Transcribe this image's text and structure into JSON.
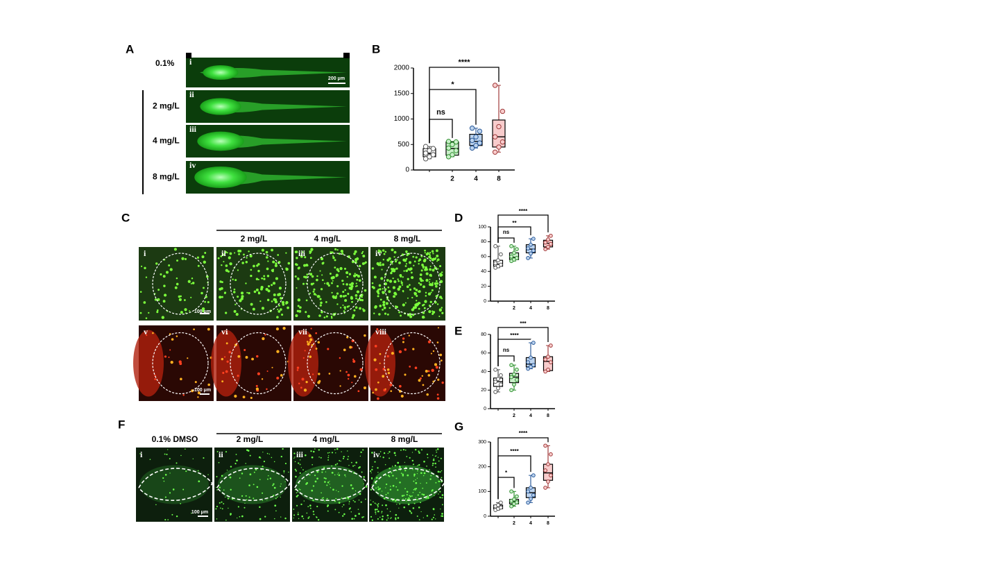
{
  "panels": {
    "A": {
      "label": "A",
      "rows": [
        "0.1%",
        "2 mg/L",
        "4 mg/L",
        "8 mg/L"
      ],
      "numerals": [
        "i",
        "ii",
        "iii",
        "iv"
      ],
      "scale": "200 μm"
    },
    "B": {
      "label": "B"
    },
    "C": {
      "label": "C",
      "headers": [
        "2 mg/L",
        "4 mg/L",
        "8 mg/L"
      ],
      "numerals": [
        "i",
        "ii",
        "iii",
        "iv",
        "v",
        "vi",
        "vii",
        "viii"
      ],
      "scale": "100 μm"
    },
    "D": {
      "label": "D"
    },
    "E": {
      "label": "E"
    },
    "F": {
      "label": "F",
      "headers": [
        "0.1% DMSO",
        "2 mg/L",
        "4 mg/L",
        "8 mg/L"
      ],
      "numerals": [
        "i",
        "ii",
        "iii",
        "iv"
      ],
      "scale": "100 μm"
    },
    "G": {
      "label": "G"
    }
  },
  "chart_data": [
    {
      "type": "box",
      "ylim": [
        0,
        2000
      ],
      "yticks": [
        0,
        500,
        1000,
        1500,
        2000
      ],
      "categories": [
        null,
        "2",
        "4",
        "8"
      ],
      "annotations": [
        "ns",
        "*",
        "****"
      ],
      "boxes": [
        {
          "fill": "#ffffff",
          "stroke": "#555555",
          "min": 220,
          "q1": 260,
          "median": 320,
          "q3": 420,
          "max": 460,
          "points": [
            220,
            260,
            300,
            330,
            380,
            420,
            460
          ]
        },
        {
          "fill": "#c9efc9",
          "stroke": "#2f8f2f",
          "min": 260,
          "q1": 290,
          "median": 420,
          "q3": 550,
          "max": 560,
          "points": [
            260,
            300,
            380,
            430,
            500,
            550,
            560
          ]
        },
        {
          "fill": "#bcd3ee",
          "stroke": "#2a5a9a",
          "min": 430,
          "q1": 480,
          "median": 560,
          "q3": 700,
          "max": 820,
          "points": [
            430,
            480,
            530,
            580,
            650,
            760,
            820
          ]
        },
        {
          "fill": "#f8cccc",
          "stroke": "#a03a3a",
          "min": 350,
          "q1": 450,
          "median": 650,
          "q3": 980,
          "max": 1660,
          "points": [
            350,
            450,
            550,
            650,
            850,
            1150,
            1660
          ]
        }
      ]
    },
    {
      "type": "box",
      "ylim": [
        0,
        100
      ],
      "yticks": [
        0,
        20,
        40,
        60,
        80,
        100
      ],
      "categories": [
        null,
        "2",
        "4",
        "8"
      ],
      "annotations": [
        "ns",
        "**",
        "****"
      ],
      "boxes": [
        {
          "fill": "#ffffff",
          "stroke": "#555555",
          "min": 45,
          "q1": 47,
          "median": 50,
          "q3": 55,
          "max": 74,
          "points": [
            45,
            47,
            49,
            51,
            55,
            63,
            74
          ]
        },
        {
          "fill": "#c9efc9",
          "stroke": "#2f8f2f",
          "min": 54,
          "q1": 56,
          "median": 59,
          "q3": 65,
          "max": 74,
          "points": [
            54,
            56,
            58,
            60,
            65,
            70,
            74
          ]
        },
        {
          "fill": "#bcd3ee",
          "stroke": "#2a5a9a",
          "min": 58,
          "q1": 65,
          "median": 70,
          "q3": 76,
          "max": 84,
          "points": [
            58,
            64,
            68,
            71,
            76,
            84
          ]
        },
        {
          "fill": "#f8cccc",
          "stroke": "#a03a3a",
          "min": 70,
          "q1": 73,
          "median": 78,
          "q3": 82,
          "max": 88,
          "points": [
            70,
            73,
            77,
            79,
            83,
            88
          ]
        }
      ]
    },
    {
      "type": "box",
      "ylim": [
        0,
        80
      ],
      "yticks": [
        0,
        20,
        40,
        60,
        80
      ],
      "categories": [
        null,
        "2",
        "4",
        "8"
      ],
      "annotations": [
        "ns",
        "****",
        "***"
      ],
      "boxes": [
        {
          "fill": "#ffffff",
          "stroke": "#555555",
          "min": 18,
          "q1": 24,
          "median": 29,
          "q3": 33,
          "max": 42,
          "points": [
            18,
            22,
            26,
            29,
            32,
            36,
            42
          ]
        },
        {
          "fill": "#c9efc9",
          "stroke": "#2f8f2f",
          "min": 20,
          "q1": 28,
          "median": 34,
          "q3": 38,
          "max": 47,
          "points": [
            20,
            26,
            31,
            34,
            37,
            42,
            47
          ]
        },
        {
          "fill": "#bcd3ee",
          "stroke": "#2a5a9a",
          "min": 43,
          "q1": 45,
          "median": 48,
          "q3": 55,
          "max": 71,
          "points": [
            43,
            45,
            47,
            50,
            55,
            71
          ]
        },
        {
          "fill": "#f8cccc",
          "stroke": "#a03a3a",
          "min": 40,
          "q1": 41,
          "median": 51,
          "q3": 56,
          "max": 68,
          "points": [
            40,
            42,
            50,
            53,
            56,
            68
          ]
        }
      ]
    },
    {
      "type": "box",
      "ylim": [
        0,
        300
      ],
      "yticks": [
        0,
        100,
        200,
        300
      ],
      "categories": [
        null,
        "2",
        "4",
        "8"
      ],
      "annotations": [
        "*",
        "****",
        "****"
      ],
      "boxes": [
        {
          "fill": "#ffffff",
          "stroke": "#555555",
          "min": 25,
          "q1": 30,
          "median": 38,
          "q3": 45,
          "max": 55,
          "points": [
            25,
            30,
            35,
            40,
            45,
            55
          ]
        },
        {
          "fill": "#c9efc9",
          "stroke": "#2f8f2f",
          "min": 40,
          "q1": 50,
          "median": 60,
          "q3": 68,
          "max": 100,
          "points": [
            40,
            50,
            56,
            62,
            68,
            80,
            100
          ]
        },
        {
          "fill": "#bcd3ee",
          "stroke": "#2a5a9a",
          "min": 55,
          "q1": 75,
          "median": 95,
          "q3": 115,
          "max": 165,
          "points": [
            55,
            70,
            85,
            100,
            115,
            165
          ]
        },
        {
          "fill": "#f8cccc",
          "stroke": "#a03a3a",
          "min": 115,
          "q1": 145,
          "median": 175,
          "q3": 210,
          "max": 285,
          "points": [
            115,
            140,
            165,
            185,
            210,
            250,
            285
          ]
        }
      ]
    }
  ]
}
